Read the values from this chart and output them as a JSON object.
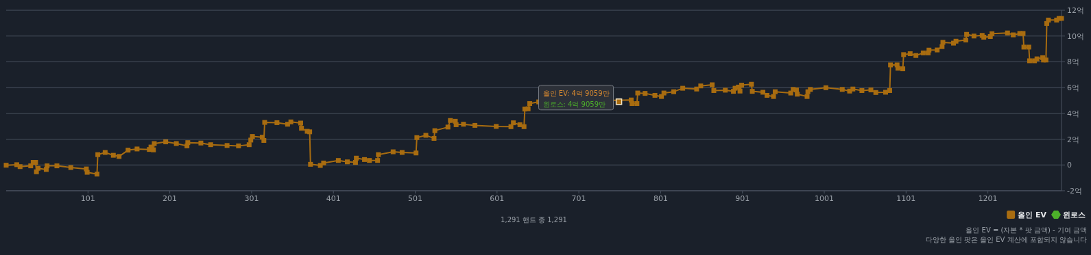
{
  "chart_data": {
    "type": "line",
    "x": [
      1,
      14,
      18,
      31,
      34,
      37,
      38,
      40,
      50,
      51,
      63,
      80,
      99,
      100,
      112,
      113,
      122,
      132,
      139,
      150,
      161,
      176,
      178,
      181,
      182,
      196,
      209,
      222,
      223,
      239,
      251,
      271,
      285,
      298,
      300,
      302,
      314,
      316,
      317,
      332,
      345,
      349,
      361,
      362,
      369,
      372,
      373,
      385,
      389,
      407,
      418,
      428,
      429,
      439,
      445,
      455,
      456,
      474,
      485,
      502,
      503,
      514,
      524,
      525,
      541,
      544,
      550,
      551,
      560,
      574,
      600,
      618,
      621,
      629,
      634,
      635,
      639,
      641,
      652,
      765,
      766,
      772,
      773,
      782,
      794,
      802,
      805,
      817,
      828,
      845,
      850,
      864,
      866,
      880,
      890,
      892,
      896,
      898,
      900,
      912,
      913,
      926,
      931,
      939,
      941,
      960,
      963,
      967,
      968,
      980,
      981,
      984,
      1003,
      1023,
      1032,
      1036,
      1047,
      1058,
      1064,
      1076,
      1081,
      1082,
      1090,
      1091,
      1097,
      1098,
      1106,
      1113,
      1122,
      1128,
      1129,
      1139,
      1145,
      1146,
      1159,
      1162,
      1174,
      1175,
      1184,
      1194,
      1196,
      1204,
      1206,
      1225,
      1232,
      1240,
      1244,
      1245,
      1251,
      1252,
      1258,
      1261,
      1268,
      1269,
      1272,
      1273,
      1275,
      1285,
      1288,
      1291
    ],
    "series": [
      {
        "name": "올인 EV",
        "color": "#a86c10",
        "values": [
          -0.02,
          0.02,
          -0.13,
          -0.07,
          0.2,
          0.2,
          -0.53,
          -0.26,
          -0.35,
          -0.07,
          -0.07,
          -0.2,
          -0.31,
          -0.57,
          -0.71,
          0.8,
          0.97,
          0.75,
          0.66,
          1.15,
          1.24,
          1.2,
          1.39,
          1.17,
          1.66,
          1.79,
          1.66,
          1.48,
          1.73,
          1.7,
          1.57,
          1.51,
          1.48,
          1.57,
          1.93,
          2.21,
          2.15,
          1.9,
          3.3,
          3.28,
          3.16,
          3.34,
          3.25,
          2.85,
          2.61,
          2.57,
          0.05,
          -0.04,
          0.15,
          0.35,
          0.24,
          0.2,
          0.53,
          0.42,
          0.35,
          0.35,
          0.8,
          1.02,
          0.97,
          0.93,
          2.12,
          2.3,
          2.06,
          2.66,
          2.94,
          3.45,
          3.39,
          3.12,
          3.16,
          3.07,
          2.99,
          2.97,
          3.27,
          3.12,
          2.97,
          4.34,
          4.36,
          4.76,
          4.89,
          5.04,
          4.76,
          4.76,
          5.58,
          5.55,
          5.4,
          5.31,
          5.58,
          5.68,
          5.95,
          5.89,
          6.13,
          6.22,
          5.77,
          5.8,
          5.71,
          5.95,
          6.04,
          5.73,
          6.19,
          6.26,
          5.71,
          5.64,
          5.4,
          5.31,
          5.68,
          5.58,
          5.86,
          5.82,
          5.49,
          5.31,
          5.68,
          5.86,
          5.99,
          5.86,
          5.73,
          5.89,
          5.77,
          5.82,
          5.62,
          5.64,
          5.77,
          7.76,
          7.76,
          7.5,
          7.46,
          8.56,
          8.63,
          8.49,
          8.69,
          8.69,
          8.91,
          8.92,
          9.18,
          9.51,
          9.45,
          9.6,
          9.69,
          10.13,
          10.0,
          10.05,
          9.91,
          9.96,
          10.18,
          10.24,
          10.09,
          10.2,
          10.2,
          9.14,
          9.14,
          8.08,
          8.08,
          8.23,
          8.32,
          8.14,
          8.14,
          10.97,
          11.24,
          11.24,
          11.37,
          11.37
        ]
      },
      {
        "name": "윈로스",
        "color": "#4caf2a",
        "values": [
          null,
          null,
          null,
          null,
          null,
          null,
          null,
          null,
          null,
          null,
          null,
          null,
          null,
          null,
          null,
          null,
          null,
          null,
          null,
          null,
          null,
          null,
          null,
          null,
          null,
          null,
          null,
          null,
          null,
          null,
          null,
          null,
          null,
          null,
          null,
          null,
          null,
          null,
          null,
          null,
          null,
          null,
          null,
          null,
          null,
          null,
          null,
          null,
          null,
          null,
          null,
          null,
          null,
          null,
          null,
          null,
          null,
          null,
          null,
          null,
          null,
          null,
          null,
          null,
          null,
          null,
          null,
          null,
          null,
          null,
          null,
          null,
          null,
          null,
          null,
          null,
          null,
          null,
          null,
          null,
          null,
          null,
          null,
          null,
          null,
          null,
          null,
          null,
          null,
          null,
          null,
          null,
          null,
          null,
          null,
          null,
          null,
          null,
          null,
          null,
          null,
          null,
          null,
          null,
          null,
          null,
          null,
          null,
          null,
          null,
          null,
          null,
          null,
          null,
          null,
          null,
          null,
          null,
          null,
          null,
          null,
          null,
          null,
          null,
          null,
          null,
          null,
          null,
          null,
          null,
          null,
          null,
          null,
          null,
          null,
          null,
          null,
          null,
          null,
          null,
          null,
          null,
          null,
          null,
          null,
          null,
          null,
          null,
          null,
          null,
          null,
          null,
          null,
          null,
          null,
          null,
          null,
          null,
          null,
          null
        ]
      }
    ],
    "xlim": [
      1,
      1291
    ],
    "xticks": [
      101,
      201,
      301,
      401,
      501,
      601,
      701,
      801,
      901,
      1001,
      1101,
      1201
    ],
    "ylim": [
      -2,
      12
    ],
    "yticks": [
      {
        "value": -2,
        "label": "-2억"
      },
      0,
      {
        "value": 2,
        "label": "2억"
      },
      {
        "value": 4,
        "label": "4억"
      },
      {
        "value": 6,
        "label": "6억"
      },
      {
        "value": 8,
        "label": "8억"
      },
      {
        "value": 10,
        "label": "10억"
      },
      {
        "value": 12,
        "label": "12억"
      }
    ],
    "grid": "y",
    "legend": "bottom right",
    "marker": "square",
    "line_style": "solid",
    "annotations": [
      {
        "text": "올인 EV: 4억 9059만",
        "x": 750,
        "y": 4.9059
      },
      "윈로스: 4억 9059만",
      "1,291 핸드 중 1,291",
      "올인 EV = (자본 * 팟 금액) - 기여 금액",
      "다양한 올인 팟은 올인 EV 계산에 포함되지 않습니다"
    ]
  }
}
